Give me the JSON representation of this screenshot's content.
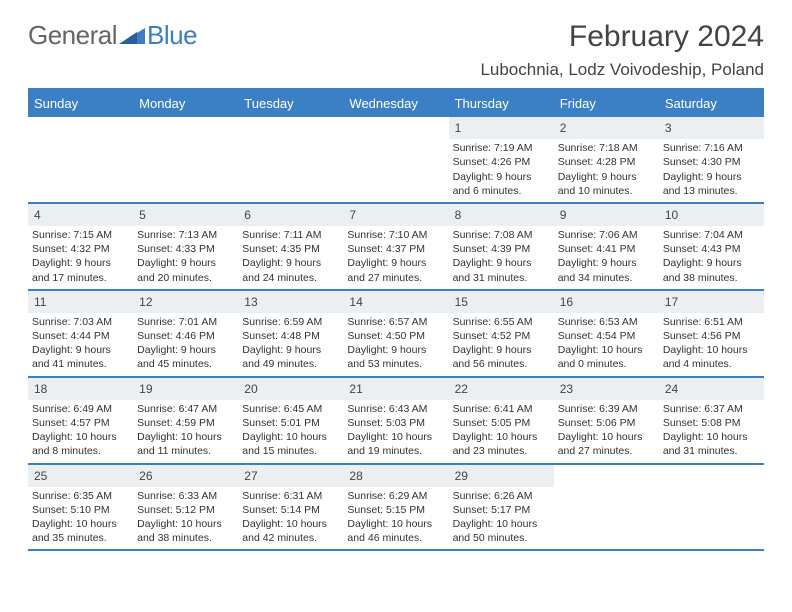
{
  "brand": {
    "part1": "General",
    "part2": "Blue"
  },
  "title": "February 2024",
  "location": "Lubochnia, Lodz Voivodeship, Poland",
  "colors": {
    "header_bg": "#3b7fc4",
    "header_text": "#ffffff",
    "daynum_bg": "#eceff1",
    "border": "#3b7fc4",
    "text": "#333333",
    "background": "#ffffff"
  },
  "typography": {
    "title_fontsize": 30,
    "location_fontsize": 17,
    "dayhead_fontsize": 13,
    "cell_fontsize": 10.5
  },
  "day_names": [
    "Sunday",
    "Monday",
    "Tuesday",
    "Wednesday",
    "Thursday",
    "Friday",
    "Saturday"
  ],
  "weeks": [
    [
      {
        "n": "",
        "sr": "",
        "ss": "",
        "dl": ""
      },
      {
        "n": "",
        "sr": "",
        "ss": "",
        "dl": ""
      },
      {
        "n": "",
        "sr": "",
        "ss": "",
        "dl": ""
      },
      {
        "n": "",
        "sr": "",
        "ss": "",
        "dl": ""
      },
      {
        "n": "1",
        "sr": "Sunrise: 7:19 AM",
        "ss": "Sunset: 4:26 PM",
        "dl": "Daylight: 9 hours and 6 minutes."
      },
      {
        "n": "2",
        "sr": "Sunrise: 7:18 AM",
        "ss": "Sunset: 4:28 PM",
        "dl": "Daylight: 9 hours and 10 minutes."
      },
      {
        "n": "3",
        "sr": "Sunrise: 7:16 AM",
        "ss": "Sunset: 4:30 PM",
        "dl": "Daylight: 9 hours and 13 minutes."
      }
    ],
    [
      {
        "n": "4",
        "sr": "Sunrise: 7:15 AM",
        "ss": "Sunset: 4:32 PM",
        "dl": "Daylight: 9 hours and 17 minutes."
      },
      {
        "n": "5",
        "sr": "Sunrise: 7:13 AM",
        "ss": "Sunset: 4:33 PM",
        "dl": "Daylight: 9 hours and 20 minutes."
      },
      {
        "n": "6",
        "sr": "Sunrise: 7:11 AM",
        "ss": "Sunset: 4:35 PM",
        "dl": "Daylight: 9 hours and 24 minutes."
      },
      {
        "n": "7",
        "sr": "Sunrise: 7:10 AM",
        "ss": "Sunset: 4:37 PM",
        "dl": "Daylight: 9 hours and 27 minutes."
      },
      {
        "n": "8",
        "sr": "Sunrise: 7:08 AM",
        "ss": "Sunset: 4:39 PM",
        "dl": "Daylight: 9 hours and 31 minutes."
      },
      {
        "n": "9",
        "sr": "Sunrise: 7:06 AM",
        "ss": "Sunset: 4:41 PM",
        "dl": "Daylight: 9 hours and 34 minutes."
      },
      {
        "n": "10",
        "sr": "Sunrise: 7:04 AM",
        "ss": "Sunset: 4:43 PM",
        "dl": "Daylight: 9 hours and 38 minutes."
      }
    ],
    [
      {
        "n": "11",
        "sr": "Sunrise: 7:03 AM",
        "ss": "Sunset: 4:44 PM",
        "dl": "Daylight: 9 hours and 41 minutes."
      },
      {
        "n": "12",
        "sr": "Sunrise: 7:01 AM",
        "ss": "Sunset: 4:46 PM",
        "dl": "Daylight: 9 hours and 45 minutes."
      },
      {
        "n": "13",
        "sr": "Sunrise: 6:59 AM",
        "ss": "Sunset: 4:48 PM",
        "dl": "Daylight: 9 hours and 49 minutes."
      },
      {
        "n": "14",
        "sr": "Sunrise: 6:57 AM",
        "ss": "Sunset: 4:50 PM",
        "dl": "Daylight: 9 hours and 53 minutes."
      },
      {
        "n": "15",
        "sr": "Sunrise: 6:55 AM",
        "ss": "Sunset: 4:52 PM",
        "dl": "Daylight: 9 hours and 56 minutes."
      },
      {
        "n": "16",
        "sr": "Sunrise: 6:53 AM",
        "ss": "Sunset: 4:54 PM",
        "dl": "Daylight: 10 hours and 0 minutes."
      },
      {
        "n": "17",
        "sr": "Sunrise: 6:51 AM",
        "ss": "Sunset: 4:56 PM",
        "dl": "Daylight: 10 hours and 4 minutes."
      }
    ],
    [
      {
        "n": "18",
        "sr": "Sunrise: 6:49 AM",
        "ss": "Sunset: 4:57 PM",
        "dl": "Daylight: 10 hours and 8 minutes."
      },
      {
        "n": "19",
        "sr": "Sunrise: 6:47 AM",
        "ss": "Sunset: 4:59 PM",
        "dl": "Daylight: 10 hours and 11 minutes."
      },
      {
        "n": "20",
        "sr": "Sunrise: 6:45 AM",
        "ss": "Sunset: 5:01 PM",
        "dl": "Daylight: 10 hours and 15 minutes."
      },
      {
        "n": "21",
        "sr": "Sunrise: 6:43 AM",
        "ss": "Sunset: 5:03 PM",
        "dl": "Daylight: 10 hours and 19 minutes."
      },
      {
        "n": "22",
        "sr": "Sunrise: 6:41 AM",
        "ss": "Sunset: 5:05 PM",
        "dl": "Daylight: 10 hours and 23 minutes."
      },
      {
        "n": "23",
        "sr": "Sunrise: 6:39 AM",
        "ss": "Sunset: 5:06 PM",
        "dl": "Daylight: 10 hours and 27 minutes."
      },
      {
        "n": "24",
        "sr": "Sunrise: 6:37 AM",
        "ss": "Sunset: 5:08 PM",
        "dl": "Daylight: 10 hours and 31 minutes."
      }
    ],
    [
      {
        "n": "25",
        "sr": "Sunrise: 6:35 AM",
        "ss": "Sunset: 5:10 PM",
        "dl": "Daylight: 10 hours and 35 minutes."
      },
      {
        "n": "26",
        "sr": "Sunrise: 6:33 AM",
        "ss": "Sunset: 5:12 PM",
        "dl": "Daylight: 10 hours and 38 minutes."
      },
      {
        "n": "27",
        "sr": "Sunrise: 6:31 AM",
        "ss": "Sunset: 5:14 PM",
        "dl": "Daylight: 10 hours and 42 minutes."
      },
      {
        "n": "28",
        "sr": "Sunrise: 6:29 AM",
        "ss": "Sunset: 5:15 PM",
        "dl": "Daylight: 10 hours and 46 minutes."
      },
      {
        "n": "29",
        "sr": "Sunrise: 6:26 AM",
        "ss": "Sunset: 5:17 PM",
        "dl": "Daylight: 10 hours and 50 minutes."
      },
      {
        "n": "",
        "sr": "",
        "ss": "",
        "dl": ""
      },
      {
        "n": "",
        "sr": "",
        "ss": "",
        "dl": ""
      }
    ]
  ]
}
